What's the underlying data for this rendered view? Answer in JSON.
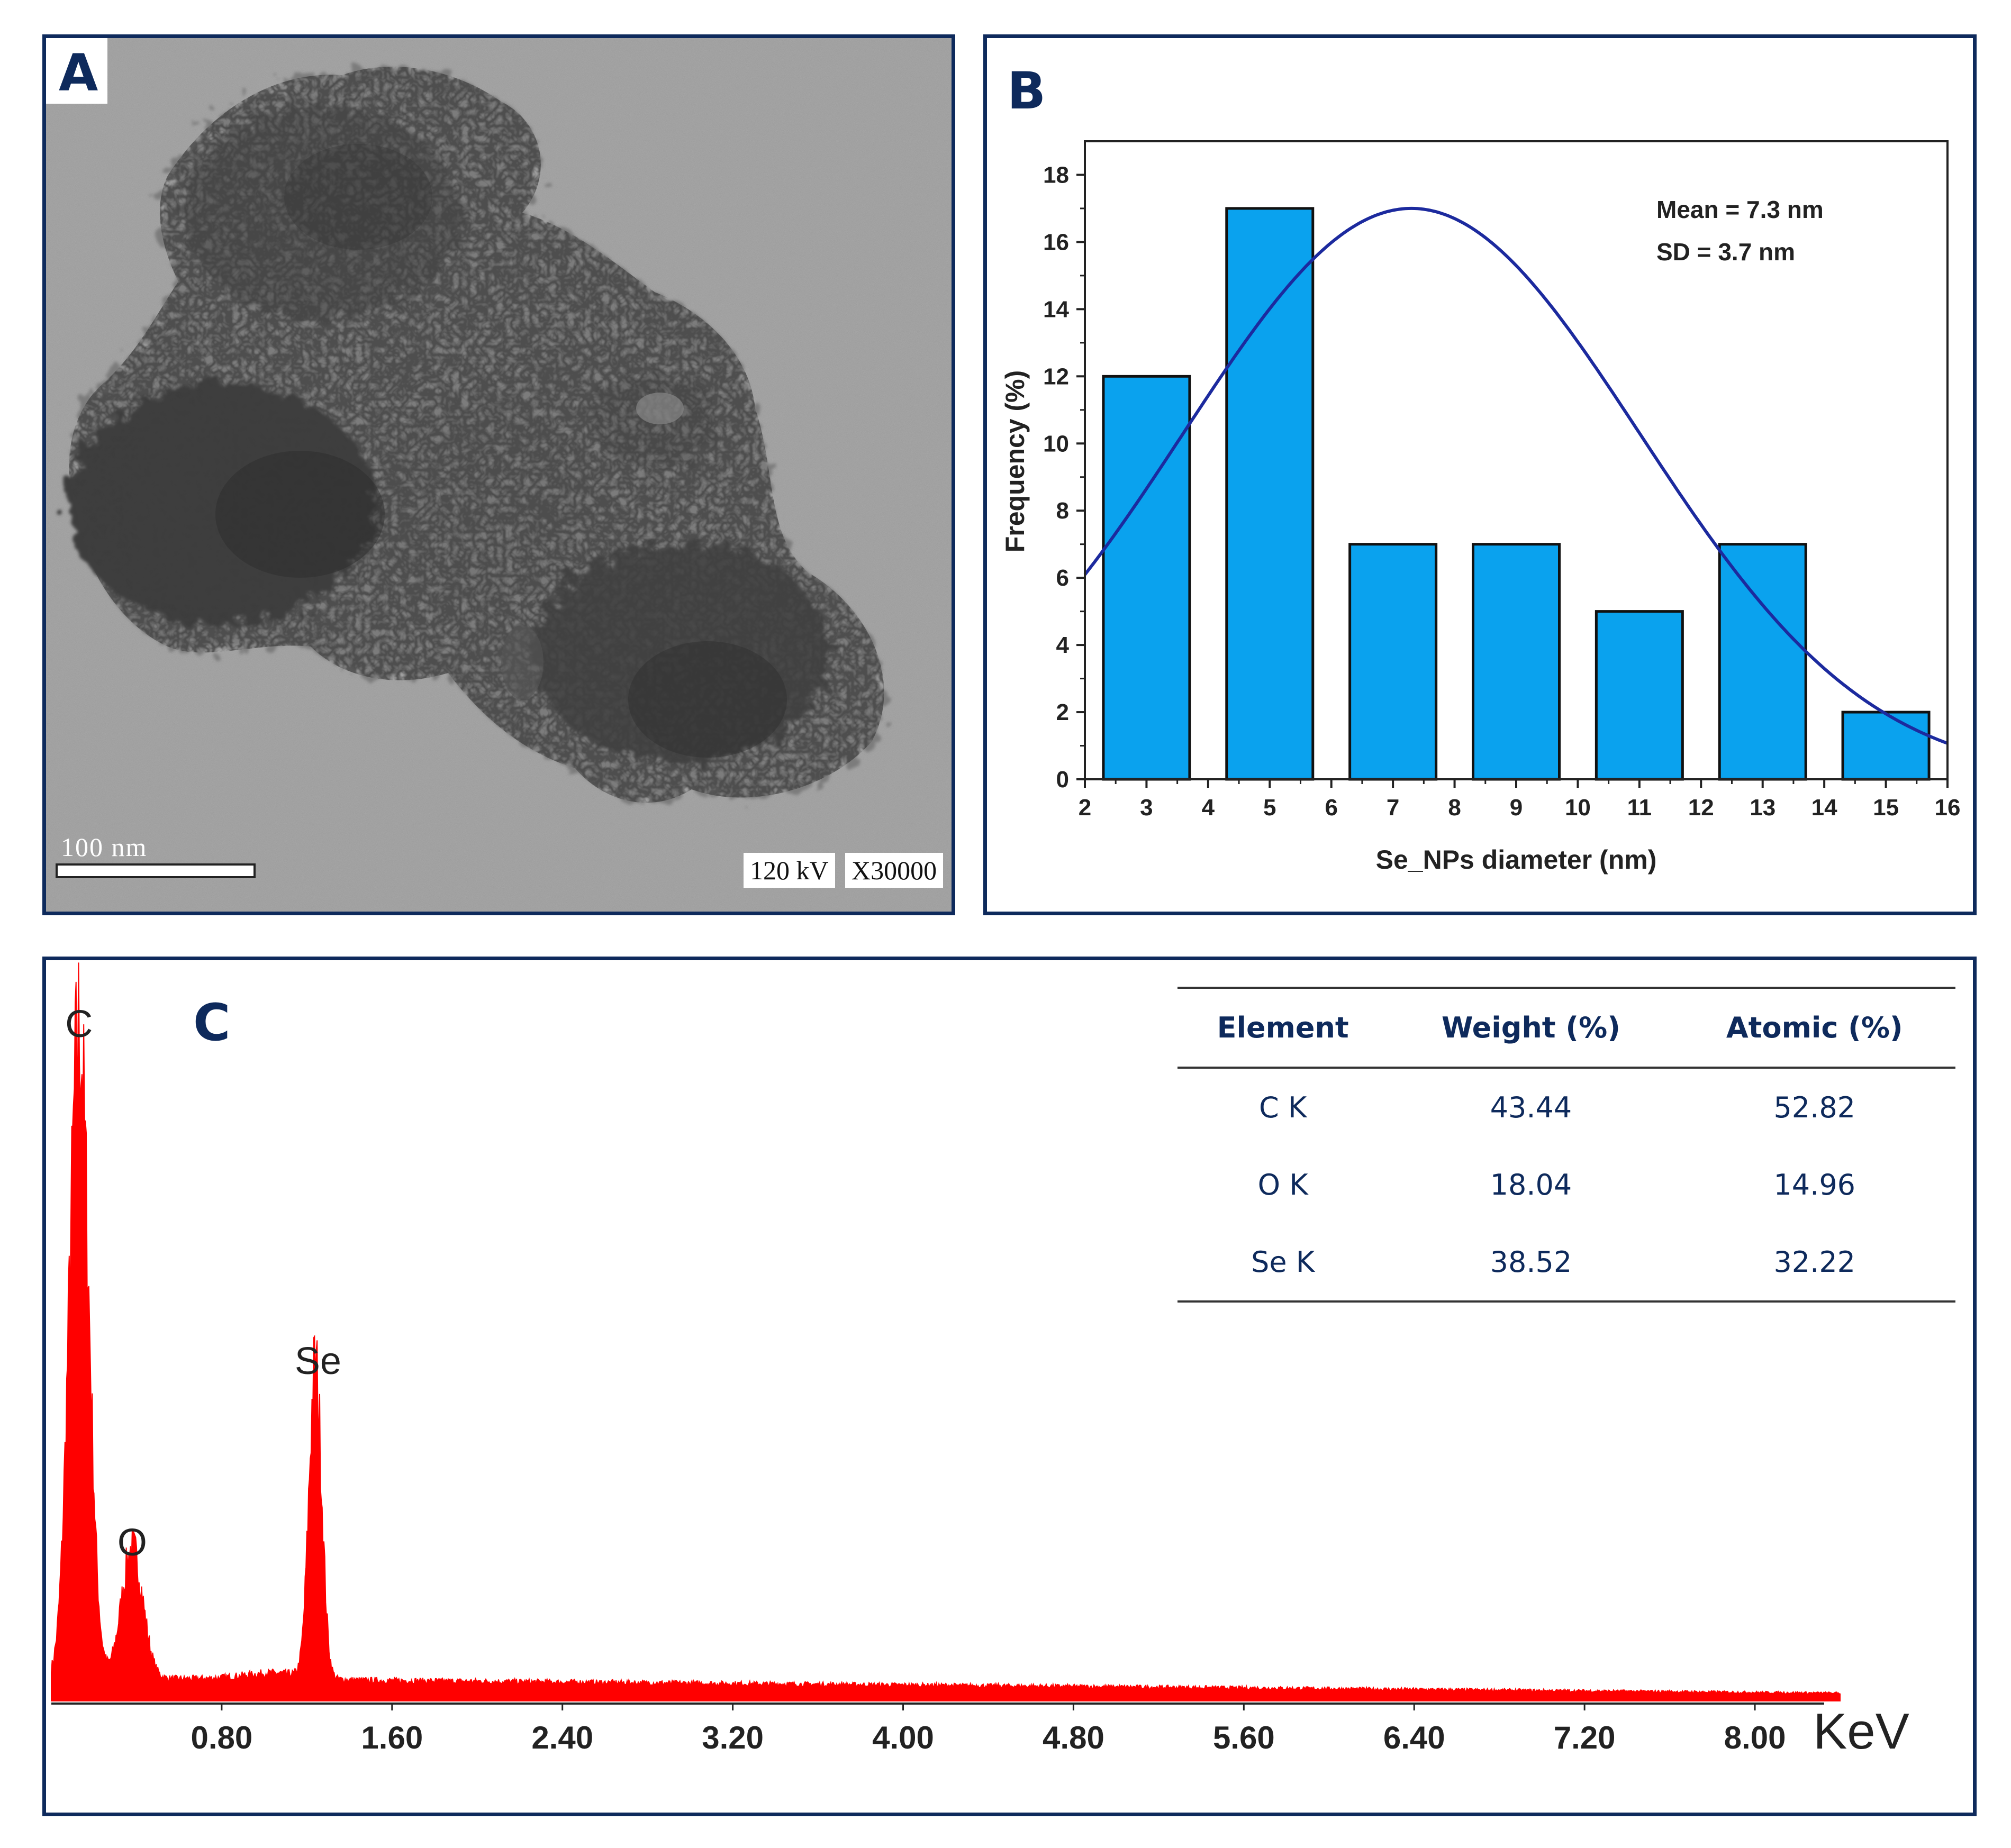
{
  "panel_a": {
    "label": "A",
    "scale_bar_text": "100 nm",
    "voltage": "120 kV",
    "magnification": "X30000"
  },
  "panel_b": {
    "label": "B",
    "mean_text": "Mean = 7.3 nm",
    "sd_text": "SD = 3.7 nm"
  },
  "panel_c": {
    "label": "C",
    "table": {
      "headers": [
        "Element",
        "Weight (%)",
        "Atomic (%)"
      ],
      "rows": [
        [
          "C K",
          "43.44",
          "52.82"
        ],
        [
          "O K",
          "18.04",
          "14.96"
        ],
        [
          "Se K",
          "38.52",
          "32.22"
        ]
      ]
    }
  },
  "colors": {
    "frame": "#0e2a5c",
    "bar_fill": "#0aa2ee",
    "fit_curve": "#1c2a9e",
    "spectrum": "#ff0000"
  },
  "chart_data": [
    {
      "type": "bar",
      "title": "",
      "xlabel": "Se_NPs diameter (nm)",
      "ylabel": "Frequency (%)",
      "xlim": [
        2,
        16
      ],
      "ylim": [
        0,
        19
      ],
      "x_ticks": [
        2,
        3,
        4,
        5,
        6,
        7,
        8,
        9,
        10,
        11,
        12,
        13,
        14,
        15,
        16
      ],
      "y_ticks": [
        0,
        2,
        4,
        6,
        8,
        10,
        12,
        14,
        16,
        18
      ],
      "bar_centers": [
        3,
        5,
        7,
        9,
        11,
        13,
        15
      ],
      "values": [
        12,
        17,
        7,
        7,
        5,
        7,
        2
      ],
      "bar_width": 1.4,
      "fit": {
        "type": "gaussian",
        "mean": 7.3,
        "sd": 3.7,
        "peak": 17
      }
    },
    {
      "type": "line",
      "title": "",
      "xlabel": "KeV",
      "ylabel": "",
      "xlim": [
        0,
        8.4
      ],
      "x_ticks": [
        "0.80",
        "1.60",
        "2.40",
        "3.20",
        "4.00",
        "4.80",
        "5.60",
        "6.40",
        "7.20",
        "8.00"
      ],
      "peaks": [
        {
          "label": "C",
          "x": 0.13,
          "relative_height": 1.0
        },
        {
          "label": "O",
          "x": 0.38,
          "relative_height": 0.2
        },
        {
          "label": "Se",
          "x": 1.24,
          "relative_height": 0.48
        }
      ],
      "background_level": 0.03
    }
  ]
}
